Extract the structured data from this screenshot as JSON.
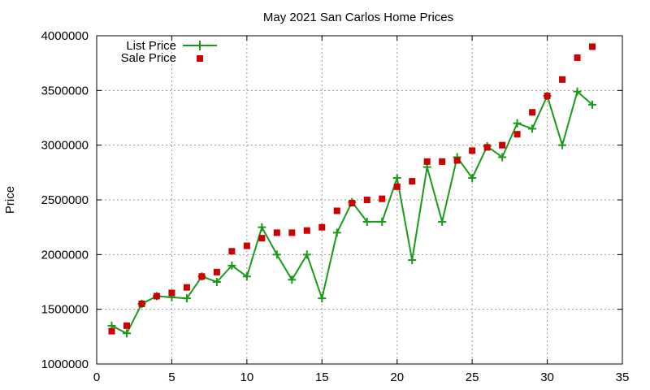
{
  "chart_data": {
    "type": "line",
    "title": "May 2021 San Carlos Home Prices",
    "xlabel": "",
    "ylabel": "Price",
    "xlim": [
      0,
      35
    ],
    "ylim": [
      1000000,
      4000000
    ],
    "x_ticks": [
      "0",
      "5",
      "10",
      "15",
      "20",
      "25",
      "30",
      "35"
    ],
    "y_ticks": [
      "1000000",
      "1500000",
      "2000000",
      "2500000",
      "3000000",
      "3500000",
      "4000000"
    ],
    "grid": true,
    "legend_position": "top-left",
    "series": [
      {
        "name": "List Price",
        "style": "line-with-plus-markers",
        "color": "#1a9a1a",
        "x": [
          1,
          2,
          3,
          4,
          5,
          6,
          7,
          8,
          9,
          10,
          11,
          12,
          13,
          14,
          15,
          16,
          17,
          18,
          19,
          20,
          21,
          22,
          23,
          24,
          25,
          26,
          27,
          28,
          29,
          30,
          31,
          32,
          33
        ],
        "values": [
          1350000,
          1280000,
          1550000,
          1620000,
          1610000,
          1600000,
          1800000,
          1750000,
          1900000,
          1800000,
          2250000,
          2000000,
          1770000,
          2000000,
          1600000,
          2200000,
          2480000,
          2300000,
          2300000,
          2700000,
          1950000,
          2800000,
          2300000,
          2890000,
          2700000,
          2990000,
          2890000,
          3200000,
          3150000,
          3450000,
          3000000,
          3490000,
          3370000
        ]
      },
      {
        "name": "Sale Price",
        "style": "square-markers",
        "color": "#cc0000",
        "x": [
          1,
          2,
          3,
          4,
          5,
          6,
          7,
          8,
          9,
          10,
          11,
          12,
          13,
          14,
          15,
          16,
          17,
          18,
          19,
          20,
          21,
          22,
          23,
          24,
          25,
          26,
          27,
          28,
          29,
          30,
          31,
          32,
          33
        ],
        "values": [
          1300000,
          1350000,
          1550000,
          1620000,
          1650000,
          1700000,
          1800000,
          1840000,
          2030000,
          2080000,
          2150000,
          2200000,
          2200000,
          2220000,
          2250000,
          2400000,
          2470000,
          2500000,
          2510000,
          2620000,
          2670000,
          2850000,
          2850000,
          2860000,
          2950000,
          2980000,
          3000000,
          3100000,
          3300000,
          3450000,
          3600000,
          3800000,
          3900000
        ]
      }
    ]
  }
}
